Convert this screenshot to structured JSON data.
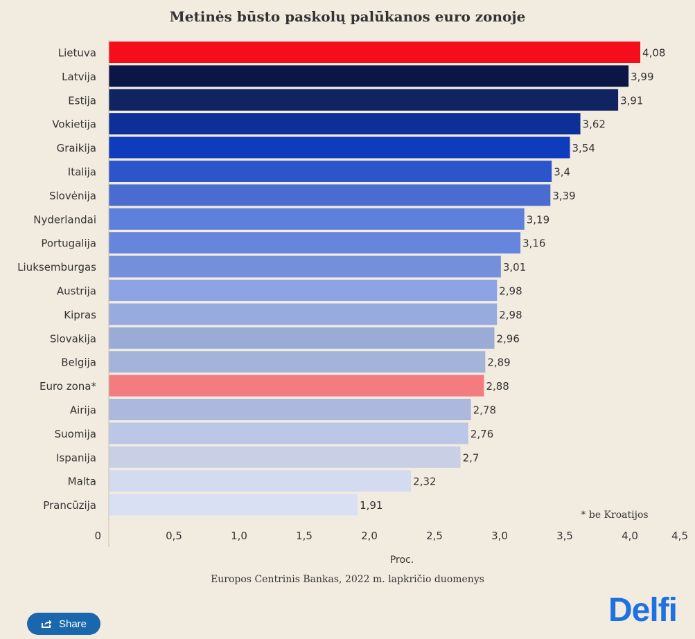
{
  "chart_data": {
    "type": "bar",
    "orientation": "horizontal",
    "title": "Metinės būsto paskolų palūkanos euro zonoje",
    "xlabel": "Proc.",
    "ylabel": "",
    "categories": [
      "Lietuva",
      "Latvija",
      "Estija",
      "Vokietija",
      "Graikija",
      "Italija",
      "Slovėnija",
      "Nyderlandai",
      "Portugalija",
      "Liuksemburgas",
      "Austrija",
      "Kipras",
      "Slovakija",
      "Belgija",
      "Euro zona*",
      "Airija",
      "Suomija",
      "Ispanija",
      "Malta",
      "Prancūzija"
    ],
    "values": [
      4.08,
      3.99,
      3.91,
      3.62,
      3.54,
      3.4,
      3.39,
      3.19,
      3.16,
      3.01,
      2.98,
      2.98,
      2.96,
      2.89,
      2.88,
      2.78,
      2.76,
      2.7,
      2.32,
      1.91
    ],
    "value_labels": [
      "4,08",
      "3,99",
      "3,91",
      "3,62",
      "3,54",
      "3,4",
      "3,39",
      "3,19",
      "3,16",
      "3,01",
      "2,98",
      "2,98",
      "2,96",
      "2,89",
      "2,88",
      "2,78",
      "2,76",
      "2,7",
      "2,32",
      "1,91"
    ],
    "colors": [
      "#f50d1c",
      "#0b1546",
      "#0f2461",
      "#0d2f98",
      "#0f3bbd",
      "#2b55c9",
      "#4a6cd1",
      "#5d80dc",
      "#6586dc",
      "#7590da",
      "#8da3e3",
      "#98abde",
      "#9aabd6",
      "#a4b3da",
      "#f47c80",
      "#acb8de",
      "#bcc7e7",
      "#c9d0e6",
      "#d4dbf0",
      "#d9e0f4"
    ],
    "xlim": [
      0,
      4.5
    ],
    "xticks": [
      0,
      0.5,
      1,
      1.5,
      2,
      2.5,
      3,
      3.5,
      4,
      4.5
    ],
    "xtick_labels": [
      "0",
      "0,5",
      "1,0",
      "1,5",
      "2,0",
      "2,5",
      "3,0",
      "3,5",
      "4,0",
      "4,5"
    ],
    "grid": false,
    "annotation": "* be Kroatijos"
  },
  "source": "Europos Centrinis Bankas, 2022 m. lapkričio duomenys",
  "share": {
    "label": "Share",
    "icon": "share-icon"
  },
  "logo": "Delfi"
}
